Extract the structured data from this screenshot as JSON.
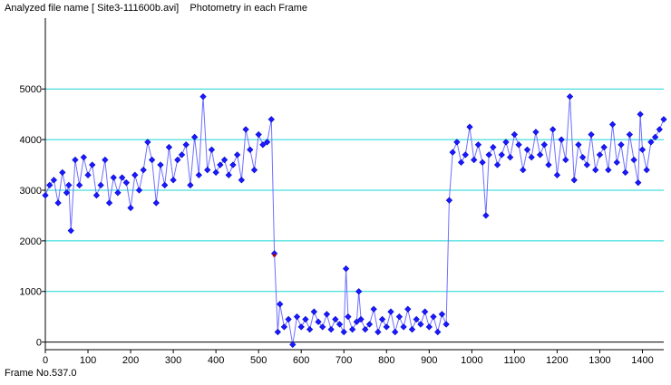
{
  "header": {
    "title": "Analyzed file name [ Site3-111600b.avi]    Photometry in each Frame"
  },
  "footer": {
    "status": "Frame No.537.0"
  },
  "colors": {
    "series": "#1a1aff",
    "line": "#6f6fff",
    "grid": "#19d6d6",
    "cursor": "#b30000"
  },
  "chart_data": {
    "type": "scatter",
    "title": "",
    "xlabel": "",
    "ylabel": "",
    "xlim": [
      0,
      1450
    ],
    "ylim": [
      -150,
      6400
    ],
    "x_ticks": [
      0,
      100,
      200,
      300,
      400,
      500,
      600,
      700,
      800,
      900,
      1000,
      1100,
      1200,
      1300,
      1400
    ],
    "y_ticks": [
      0,
      1000,
      2000,
      3000,
      4000,
      5000
    ],
    "grid": "horizontal",
    "cursor_frame": 537,
    "series": [
      {
        "points": [
          [
            0,
            2900
          ],
          [
            10,
            3100
          ],
          [
            20,
            3200
          ],
          [
            30,
            2750
          ],
          [
            40,
            3350
          ],
          [
            50,
            2950
          ],
          [
            55,
            3100
          ],
          [
            60,
            2200
          ],
          [
            70,
            3600
          ],
          [
            80,
            3100
          ],
          [
            90,
            3650
          ],
          [
            100,
            3300
          ],
          [
            110,
            3500
          ],
          [
            120,
            2900
          ],
          [
            130,
            3100
          ],
          [
            140,
            3600
          ],
          [
            150,
            2750
          ],
          [
            160,
            3250
          ],
          [
            170,
            2950
          ],
          [
            180,
            3250
          ],
          [
            190,
            3150
          ],
          [
            200,
            2650
          ],
          [
            210,
            3300
          ],
          [
            220,
            3000
          ],
          [
            230,
            3400
          ],
          [
            240,
            3950
          ],
          [
            250,
            3600
          ],
          [
            260,
            2750
          ],
          [
            270,
            3500
          ],
          [
            280,
            3100
          ],
          [
            290,
            3850
          ],
          [
            300,
            3200
          ],
          [
            310,
            3600
          ],
          [
            320,
            3700
          ],
          [
            330,
            3900
          ],
          [
            340,
            3100
          ],
          [
            350,
            4050
          ],
          [
            360,
            3300
          ],
          [
            370,
            4850
          ],
          [
            380,
            3400
          ],
          [
            390,
            3800
          ],
          [
            400,
            3350
          ],
          [
            410,
            3500
          ],
          [
            420,
            3600
          ],
          [
            430,
            3300
          ],
          [
            440,
            3500
          ],
          [
            450,
            3700
          ],
          [
            460,
            3200
          ],
          [
            470,
            4200
          ],
          [
            480,
            3800
          ],
          [
            490,
            3400
          ],
          [
            500,
            4100
          ],
          [
            510,
            3900
          ],
          [
            520,
            3950
          ],
          [
            530,
            4400
          ],
          [
            537,
            1750
          ],
          [
            545,
            200
          ],
          [
            550,
            750
          ],
          [
            560,
            300
          ],
          [
            570,
            450
          ],
          [
            580,
            -50
          ],
          [
            590,
            500
          ],
          [
            600,
            300
          ],
          [
            610,
            450
          ],
          [
            620,
            250
          ],
          [
            630,
            600
          ],
          [
            640,
            400
          ],
          [
            650,
            300
          ],
          [
            660,
            550
          ],
          [
            670,
            250
          ],
          [
            680,
            450
          ],
          [
            690,
            350
          ],
          [
            700,
            200
          ],
          [
            705,
            1450
          ],
          [
            710,
            500
          ],
          [
            720,
            250
          ],
          [
            730,
            400
          ],
          [
            735,
            1000
          ],
          [
            740,
            450
          ],
          [
            750,
            250
          ],
          [
            760,
            350
          ],
          [
            770,
            650
          ],
          [
            780,
            200
          ],
          [
            790,
            450
          ],
          [
            800,
            300
          ],
          [
            810,
            600
          ],
          [
            820,
            200
          ],
          [
            830,
            500
          ],
          [
            840,
            300
          ],
          [
            850,
            650
          ],
          [
            860,
            250
          ],
          [
            870,
            450
          ],
          [
            880,
            350
          ],
          [
            890,
            600
          ],
          [
            900,
            300
          ],
          [
            910,
            500
          ],
          [
            920,
            200
          ],
          [
            930,
            550
          ],
          [
            940,
            350
          ],
          [
            947,
            2800
          ],
          [
            955,
            3750
          ],
          [
            965,
            3950
          ],
          [
            975,
            3550
          ],
          [
            985,
            3700
          ],
          [
            995,
            4250
          ],
          [
            1005,
            3600
          ],
          [
            1015,
            3900
          ],
          [
            1025,
            3550
          ],
          [
            1033,
            2500
          ],
          [
            1040,
            3700
          ],
          [
            1050,
            3850
          ],
          [
            1060,
            3500
          ],
          [
            1070,
            3700
          ],
          [
            1080,
            3950
          ],
          [
            1090,
            3650
          ],
          [
            1100,
            4100
          ],
          [
            1110,
            3900
          ],
          [
            1120,
            3400
          ],
          [
            1130,
            3800
          ],
          [
            1140,
            3650
          ],
          [
            1150,
            4150
          ],
          [
            1160,
            3700
          ],
          [
            1170,
            3900
          ],
          [
            1180,
            3500
          ],
          [
            1190,
            4200
          ],
          [
            1200,
            3300
          ],
          [
            1210,
            4000
          ],
          [
            1220,
            3600
          ],
          [
            1230,
            4850
          ],
          [
            1240,
            3200
          ],
          [
            1250,
            3900
          ],
          [
            1260,
            3650
          ],
          [
            1270,
            3500
          ],
          [
            1280,
            4100
          ],
          [
            1290,
            3400
          ],
          [
            1300,
            3700
          ],
          [
            1310,
            3850
          ],
          [
            1320,
            3400
          ],
          [
            1330,
            4300
          ],
          [
            1340,
            3550
          ],
          [
            1350,
            3900
          ],
          [
            1360,
            3350
          ],
          [
            1370,
            4100
          ],
          [
            1380,
            3600
          ],
          [
            1390,
            3150
          ],
          [
            1395,
            4500
          ],
          [
            1400,
            3800
          ],
          [
            1410,
            3400
          ],
          [
            1420,
            3950
          ],
          [
            1430,
            4050
          ],
          [
            1440,
            4200
          ],
          [
            1450,
            4400
          ]
        ]
      }
    ]
  }
}
